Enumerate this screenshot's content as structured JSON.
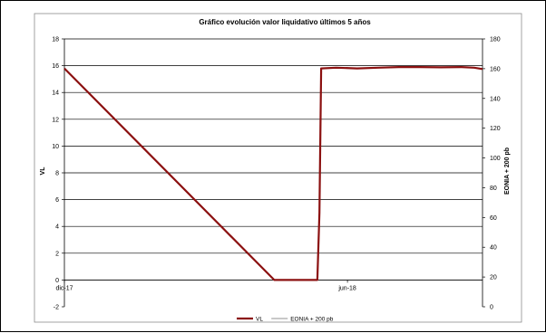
{
  "chart_data": {
    "type": "line",
    "title": "Gráfico evolución valor liquidativo últimos 5 años",
    "ylabel_left": "VL",
    "ylabel_right": "EONIA + 200 pb",
    "ylim_left": [
      -2,
      18
    ],
    "yticks_left": [
      -2,
      0,
      2,
      4,
      6,
      8,
      10,
      12,
      14,
      16,
      18
    ],
    "ylim_right": [
      0,
      180
    ],
    "yticks_right": [
      0,
      20,
      40,
      60,
      80,
      100,
      120,
      140,
      160,
      180
    ],
    "x_tick_labels": [
      "dic-17",
      "jun-18"
    ],
    "x_domain": [
      0,
      100
    ],
    "x_ticks": [
      0,
      67.7
    ],
    "grid": true,
    "legend_position": "bottom",
    "series": [
      {
        "name": "VL",
        "color": "#8B1010",
        "axis": "left",
        "points": [
          [
            0,
            15.8
          ],
          [
            50.2,
            0.0
          ],
          [
            60.5,
            0.0
          ],
          [
            61.0,
            5.0
          ],
          [
            61.4,
            15.8
          ],
          [
            65.0,
            15.85
          ],
          [
            70.0,
            15.8
          ],
          [
            75.0,
            15.85
          ],
          [
            80.0,
            15.9
          ],
          [
            85.0,
            15.9
          ],
          [
            90.0,
            15.88
          ],
          [
            95.0,
            15.9
          ],
          [
            98.0,
            15.85
          ],
          [
            100.0,
            15.75
          ]
        ]
      },
      {
        "name": "EONIA + 200 pb",
        "color": "#A6A6A6",
        "axis": "right",
        "points": []
      }
    ]
  }
}
